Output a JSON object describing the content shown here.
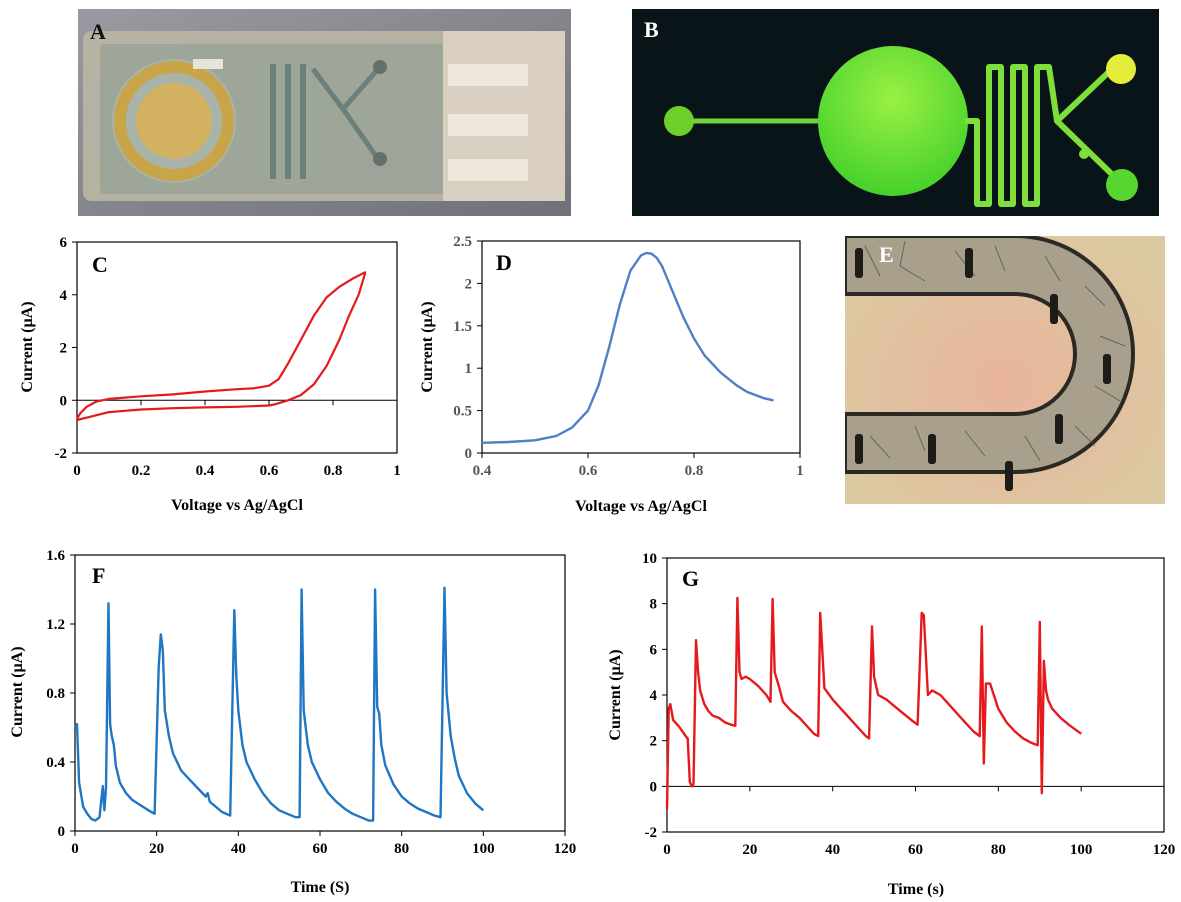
{
  "panels": {
    "a": {
      "label": "A"
    },
    "b": {
      "label": "B"
    },
    "e": {
      "label": "E"
    }
  },
  "colors": {
    "red": "#e41a1c",
    "blue": "#1f77c4",
    "lightblue": "#4f80c4"
  },
  "chart_data": [
    {
      "id": "C",
      "type": "line",
      "panel_label": "C",
      "xlabel": "Voltage vs Ag/AgCl",
      "ylabel": "Current (µA)",
      "xlim": [
        0,
        1
      ],
      "ylim": [
        -2,
        6
      ],
      "xticks": [
        "0",
        "0.2",
        "0.4",
        "0.6",
        "0.8",
        "1"
      ],
      "yticks": [
        "-2",
        "0",
        "2",
        "4",
        "6"
      ],
      "series": [
        {
          "color": "#e41a1c",
          "x": [
            0.0,
            0.01,
            0.03,
            0.06,
            0.1,
            0.2,
            0.3,
            0.4,
            0.5,
            0.55,
            0.6,
            0.63,
            0.66,
            0.7,
            0.74,
            0.78,
            0.82,
            0.86,
            0.9,
            0.9,
            0.88,
            0.85,
            0.82,
            0.78,
            0.74,
            0.7,
            0.66,
            0.62,
            0.6,
            0.5,
            0.4,
            0.3,
            0.2,
            0.1,
            0.05,
            0.0
          ],
          "y": [
            -0.7,
            -0.5,
            -0.25,
            -0.05,
            0.05,
            0.15,
            0.22,
            0.33,
            0.42,
            0.45,
            0.55,
            0.8,
            1.4,
            2.3,
            3.2,
            3.9,
            4.3,
            4.6,
            4.85,
            4.8,
            4.0,
            3.2,
            2.3,
            1.3,
            0.6,
            0.2,
            0.0,
            -0.15,
            -0.2,
            -0.25,
            -0.27,
            -0.3,
            -0.35,
            -0.45,
            -0.6,
            -0.75
          ]
        }
      ]
    },
    {
      "id": "D",
      "type": "line",
      "panel_label": "D",
      "xlabel": "Voltage vs Ag/AgCl",
      "ylabel": "Current (µA)",
      "xlim": [
        0.4,
        1
      ],
      "ylim": [
        0,
        2.5
      ],
      "xticks": [
        "0.4",
        "0.6",
        "0.8",
        "1"
      ],
      "yticks": [
        "0",
        "0.5",
        "1",
        "1.5",
        "2",
        "2.5"
      ],
      "series": [
        {
          "color": "#4f80c4",
          "x": [
            0.4,
            0.45,
            0.5,
            0.54,
            0.57,
            0.6,
            0.62,
            0.64,
            0.66,
            0.68,
            0.7,
            0.71,
            0.72,
            0.73,
            0.74,
            0.75,
            0.76,
            0.78,
            0.8,
            0.82,
            0.85,
            0.88,
            0.9,
            0.93,
            0.95
          ],
          "y": [
            0.12,
            0.13,
            0.15,
            0.2,
            0.3,
            0.5,
            0.8,
            1.25,
            1.75,
            2.15,
            2.33,
            2.36,
            2.35,
            2.3,
            2.2,
            2.05,
            1.9,
            1.6,
            1.35,
            1.15,
            0.95,
            0.8,
            0.72,
            0.65,
            0.62
          ]
        }
      ]
    },
    {
      "id": "F",
      "type": "line",
      "panel_label": "F",
      "xlabel": "Time (S)",
      "ylabel": "Current (µA)",
      "xlim": [
        0,
        120
      ],
      "ylim": [
        0,
        1.6
      ],
      "xticks": [
        "0",
        "20",
        "40",
        "60",
        "80",
        "100",
        "120"
      ],
      "yticks": [
        "0",
        "0.4",
        "0.8",
        "1.2",
        "1.6"
      ],
      "series": [
        {
          "color": "#1f77c4",
          "x": [
            0,
            0.5,
            1,
            2,
            3,
            4,
            5,
            6,
            6.8,
            7.2,
            7.6,
            8.2,
            8.6,
            9,
            9.5,
            10,
            11,
            12.5,
            14,
            16,
            18,
            19.5,
            20.5,
            21,
            21.5,
            22,
            23,
            24,
            26,
            28,
            30,
            32,
            32.5,
            33,
            33.5,
            34,
            36,
            38,
            39,
            39.5,
            40,
            41,
            42,
            44,
            46,
            48,
            50,
            52,
            54,
            55,
            55.5,
            56,
            57,
            58,
            60,
            62,
            64,
            66,
            68,
            70,
            72,
            73,
            73.5,
            74,
            74.5,
            75,
            76,
            78,
            80,
            82,
            84,
            86,
            88,
            89.5,
            90.5,
            91,
            92,
            93,
            94,
            96,
            98,
            100
          ],
          "y": [
            0.6,
            0.62,
            0.28,
            0.14,
            0.1,
            0.07,
            0.06,
            0.08,
            0.26,
            0.12,
            0.25,
            1.32,
            0.62,
            0.55,
            0.5,
            0.38,
            0.28,
            0.22,
            0.18,
            0.15,
            0.12,
            0.1,
            0.95,
            1.14,
            1.05,
            0.7,
            0.55,
            0.45,
            0.35,
            0.3,
            0.25,
            0.2,
            0.22,
            0.17,
            0.16,
            0.15,
            0.11,
            0.09,
            1.28,
            0.9,
            0.7,
            0.5,
            0.4,
            0.3,
            0.22,
            0.16,
            0.12,
            0.1,
            0.08,
            0.08,
            1.4,
            0.7,
            0.5,
            0.4,
            0.3,
            0.22,
            0.17,
            0.13,
            0.1,
            0.08,
            0.06,
            0.06,
            1.4,
            0.72,
            0.68,
            0.5,
            0.38,
            0.27,
            0.2,
            0.16,
            0.13,
            0.11,
            0.09,
            0.08,
            1.41,
            0.8,
            0.55,
            0.42,
            0.32,
            0.22,
            0.16,
            0.12
          ]
        }
      ]
    },
    {
      "id": "G",
      "type": "line",
      "panel_label": "G",
      "xlabel": "Time (s)",
      "ylabel": "Current (µA)",
      "xlim": [
        0,
        120
      ],
      "ylim": [
        -2,
        10
      ],
      "xticks": [
        "0",
        "20",
        "40",
        "60",
        "80",
        "100",
        "120"
      ],
      "yticks": [
        "-2",
        "0",
        "2",
        "4",
        "6",
        "8",
        "10"
      ],
      "series": [
        {
          "color": "#e41a1c",
          "x": [
            0,
            0.4,
            0.8,
            1.5,
            3,
            4.5,
            5,
            5.5,
            6,
            6.4,
            7,
            7.5,
            8,
            9,
            10,
            11,
            12.5,
            14,
            15.5,
            16.5,
            17,
            17.5,
            18,
            19,
            20,
            22,
            24,
            25,
            25.5,
            26,
            27,
            28,
            30,
            32,
            34,
            35.5,
            36.5,
            37,
            38,
            40,
            42,
            44,
            46,
            48,
            48.8,
            49.5,
            50,
            51,
            53,
            55,
            57,
            59,
            60.5,
            61.5,
            62,
            63,
            64,
            66,
            68,
            70,
            72,
            74,
            75.5,
            76,
            76.5,
            77,
            78,
            80,
            82,
            84,
            86,
            88,
            89.5,
            90,
            90.5,
            91,
            91.5,
            92,
            93,
            95,
            97,
            100
          ],
          "y": [
            -1.0,
            3.4,
            3.6,
            2.9,
            2.6,
            2.2,
            2.1,
            0.2,
            0.0,
            0.1,
            6.4,
            5.0,
            4.2,
            3.6,
            3.3,
            3.1,
            3.0,
            2.8,
            2.7,
            2.65,
            8.25,
            5.0,
            4.7,
            4.8,
            4.7,
            4.4,
            4.0,
            3.7,
            8.2,
            5.0,
            4.4,
            3.7,
            3.3,
            3.0,
            2.6,
            2.3,
            2.2,
            7.6,
            4.3,
            3.8,
            3.4,
            3.0,
            2.6,
            2.2,
            2.1,
            7.0,
            4.8,
            4.0,
            3.8,
            3.5,
            3.2,
            2.9,
            2.7,
            7.6,
            7.5,
            4.0,
            4.2,
            4.0,
            3.6,
            3.2,
            2.8,
            2.4,
            2.2,
            7.0,
            1.0,
            4.5,
            4.5,
            3.4,
            2.8,
            2.4,
            2.1,
            1.9,
            1.8,
            7.2,
            -0.3,
            5.5,
            4.2,
            3.8,
            3.4,
            3.0,
            2.7,
            2.3
          ]
        }
      ]
    }
  ]
}
